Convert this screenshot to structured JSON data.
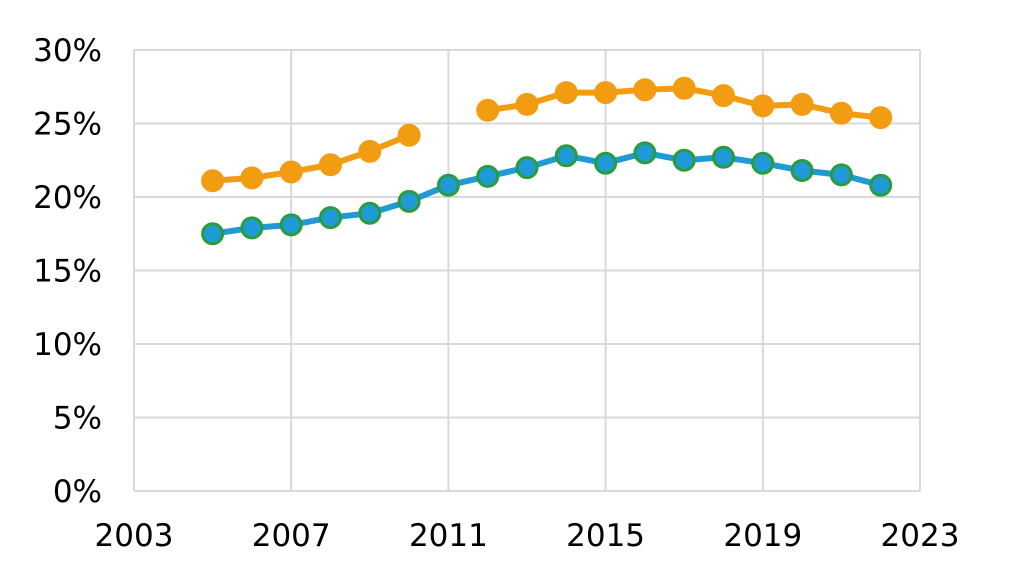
{
  "chart_data": {
    "type": "line",
    "title": "",
    "xlabel": "",
    "ylabel": "",
    "xlim": [
      2003,
      2023
    ],
    "ylim": [
      0,
      30
    ],
    "x_ticks": [
      2003,
      2007,
      2011,
      2015,
      2019,
      2023
    ],
    "x_tick_labels": [
      "2003",
      "2007",
      "2011",
      "2015",
      "2019",
      "2023"
    ],
    "y_ticks": [
      0,
      5,
      10,
      15,
      20,
      25,
      30
    ],
    "y_tick_labels": [
      "0%",
      "5%",
      "10%",
      "15%",
      "20%",
      "25%",
      "30%"
    ],
    "grid": true,
    "legend": "none",
    "series": [
      {
        "color": "#f29c11",
        "marker_fill": "#f29c11",
        "marker_edge": "#f29c11",
        "points": [
          [
            2005,
            21.1
          ],
          [
            2006,
            21.3
          ],
          [
            2007,
            21.7
          ],
          [
            2008,
            22.2
          ],
          [
            2009,
            23.1
          ],
          [
            2010,
            24.2
          ],
          [
            2012,
            25.9
          ],
          [
            2013,
            26.3
          ],
          [
            2014,
            27.1
          ],
          [
            2015,
            27.1
          ],
          [
            2016,
            27.3
          ],
          [
            2017,
            27.4
          ],
          [
            2018,
            26.9
          ],
          [
            2019,
            26.2
          ],
          [
            2020,
            26.3
          ],
          [
            2021,
            25.7
          ],
          [
            2022,
            25.4
          ]
        ]
      },
      {
        "color": "#1f9ad6",
        "marker_fill": "#1f9ad6",
        "marker_edge": "#2a9d3a",
        "points": [
          [
            2005,
            17.5
          ],
          [
            2006,
            17.9
          ],
          [
            2007,
            18.1
          ],
          [
            2008,
            18.6
          ],
          [
            2009,
            18.9
          ],
          [
            2010,
            19.7
          ],
          [
            2011,
            20.8
          ],
          [
            2012,
            21.4
          ],
          [
            2013,
            22.0
          ],
          [
            2014,
            22.8
          ],
          [
            2015,
            22.3
          ],
          [
            2016,
            23.0
          ],
          [
            2017,
            22.5
          ],
          [
            2018,
            22.7
          ],
          [
            2019,
            22.3
          ],
          [
            2020,
            21.8
          ],
          [
            2021,
            21.5
          ],
          [
            2022,
            20.8
          ]
        ]
      }
    ]
  }
}
